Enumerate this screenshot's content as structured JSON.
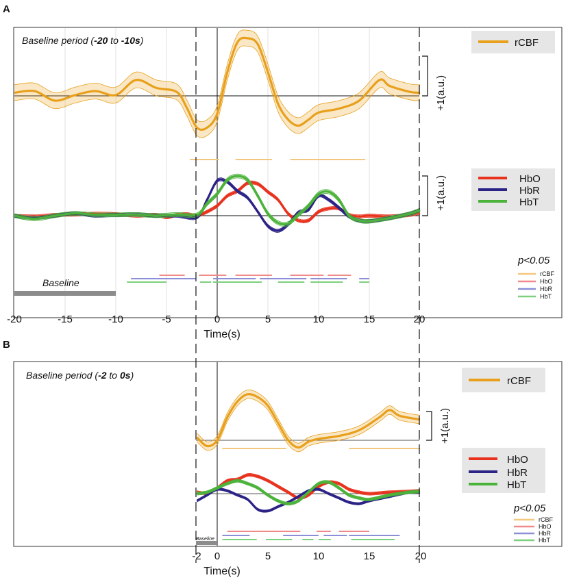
{
  "panels": {
    "A": {
      "label": "A",
      "baseline_text": {
        "pre": "Baseline period (",
        "v1": "-20",
        "mid": " to ",
        "v2": "-10s",
        "post": ")"
      },
      "xlabel": "Time(s)",
      "xticks": [
        "-20",
        "-15",
        "-10",
        "-5",
        "0",
        "5",
        "10",
        "15",
        "20"
      ],
      "baseline_bar_label": "Baseline",
      "scale_label": "+1(a.u.)",
      "legend_rcbf": [
        "rCBF"
      ],
      "legend_hb": [
        "HbO",
        "HbR",
        "HbT"
      ],
      "sig_title": "p<0.05",
      "sig_legend": [
        "rCBF",
        "HbO",
        "HbR",
        "HbT"
      ]
    },
    "B": {
      "label": "B",
      "baseline_text": {
        "pre": "Baseline period (",
        "v1": "-2",
        "mid": " to ",
        "v2": "0s",
        "post": ")"
      },
      "xlabel": "Time(s)",
      "xticks": [
        "-2",
        "0",
        "5",
        "10",
        "15",
        "20"
      ],
      "baseline_bar_label": "Baseline",
      "scale_label": "+1(a.u.)",
      "legend_rcbf": [
        "rCBF"
      ],
      "legend_hb": [
        "HbO",
        "HbR",
        "HbT"
      ],
      "sig_title": "p<0.05",
      "sig_legend": [
        "rCBF",
        "HbO",
        "HbR",
        "HbT"
      ]
    }
  },
  "colors": {
    "rCBF": "#e8a01c",
    "HbO": "#e8321e",
    "HbR": "#2c2387",
    "HbT": "#4bb33a",
    "sig_rCBF": "#f2c77e",
    "sig_HbO": "#f08a8a",
    "sig_HbR": "#8b8fd6",
    "sig_HbT": "#7ccf7c",
    "baseline_bar": "#8c8c8c",
    "legend_bg": "#e6e6e6"
  },
  "chart_data": [
    {
      "panel": "A",
      "type": "line",
      "title": "Baseline period (-20 to -10s)",
      "xlabel": "Time(s)",
      "ylabel": "",
      "xlim": [
        -20,
        20
      ],
      "vlines": [
        -2,
        20
      ],
      "baseline_window": [
        -20,
        -10
      ],
      "series": [
        {
          "name": "rCBF",
          "band": 0.2,
          "points": [
            [
              -20,
              0.08
            ],
            [
              -18,
              0.12
            ],
            [
              -16,
              -0.12
            ],
            [
              -14,
              0.02
            ],
            [
              -12,
              0.12
            ],
            [
              -10,
              0.02
            ],
            [
              -8,
              0.4
            ],
            [
              -6,
              0.2
            ],
            [
              -4,
              0.1
            ],
            [
              -3,
              -0.3
            ],
            [
              -2,
              -0.8
            ],
            [
              -1,
              -0.8
            ],
            [
              0,
              -0.45
            ],
            [
              1,
              0.6
            ],
            [
              2,
              1.35
            ],
            [
              3,
              1.45
            ],
            [
              4,
              1.3
            ],
            [
              5,
              0.6
            ],
            [
              6,
              -0.2
            ],
            [
              7,
              -0.6
            ],
            [
              8,
              -0.75
            ],
            [
              9,
              -0.6
            ],
            [
              10,
              -0.42
            ],
            [
              12,
              -0.32
            ],
            [
              14,
              -0.12
            ],
            [
              16,
              0.4
            ],
            [
              17,
              0.25
            ],
            [
              19,
              0.1
            ],
            [
              20,
              0.08
            ]
          ]
        },
        {
          "name": "HbO",
          "band": 0.04,
          "points": [
            [
              -20,
              0
            ],
            [
              -18,
              -0.02
            ],
            [
              -16,
              0.02
            ],
            [
              -14,
              0.03
            ],
            [
              -12,
              0.05
            ],
            [
              -10,
              0.04
            ],
            [
              -8,
              0
            ],
            [
              -6,
              0.02
            ],
            [
              -5,
              -0.04
            ],
            [
              -4,
              0.02
            ],
            [
              -3,
              0.04
            ],
            [
              -2,
              0
            ],
            [
              -1,
              0.1
            ],
            [
              0,
              0.25
            ],
            [
              1,
              0.5
            ],
            [
              2,
              0.62
            ],
            [
              3,
              0.82
            ],
            [
              4,
              0.8
            ],
            [
              5,
              0.6
            ],
            [
              6,
              0.4
            ],
            [
              7,
              0.05
            ],
            [
              8,
              -0.12
            ],
            [
              9,
              -0.12
            ],
            [
              10,
              0.1
            ],
            [
              11,
              0.18
            ],
            [
              12,
              0.18
            ],
            [
              13,
              0.02
            ],
            [
              14,
              -0.02
            ],
            [
              15,
              0
            ],
            [
              17,
              -0.02
            ],
            [
              19,
              0.02
            ],
            [
              20,
              0.08
            ]
          ]
        },
        {
          "name": "HbR",
          "band": 0.04,
          "points": [
            [
              -20,
              0
            ],
            [
              -18,
              -0.06
            ],
            [
              -16,
              0
            ],
            [
              -14,
              0.05
            ],
            [
              -12,
              0
            ],
            [
              -10,
              0.02
            ],
            [
              -8,
              0.04
            ],
            [
              -6,
              0
            ],
            [
              -4,
              0
            ],
            [
              -2,
              -0.04
            ],
            [
              -1,
              0.4
            ],
            [
              0,
              0.88
            ],
            [
              1,
              0.85
            ],
            [
              2,
              0.62
            ],
            [
              3,
              0.45
            ],
            [
              4,
              0.1
            ],
            [
              5,
              -0.26
            ],
            [
              6,
              -0.38
            ],
            [
              7,
              -0.22
            ],
            [
              8,
              0.08
            ],
            [
              9,
              0.15
            ],
            [
              10,
              0.5
            ],
            [
              11,
              0.4
            ],
            [
              12,
              0.2
            ],
            [
              13,
              -0.02
            ],
            [
              14,
              -0.12
            ],
            [
              15,
              -0.14
            ],
            [
              17,
              -0.06
            ],
            [
              19,
              0.05
            ],
            [
              20,
              0.14
            ]
          ]
        },
        {
          "name": "HbT",
          "band": 0.05,
          "points": [
            [
              -20,
              0
            ],
            [
              -18,
              -0.08
            ],
            [
              -16,
              0
            ],
            [
              -14,
              0.06
            ],
            [
              -12,
              0.02
            ],
            [
              -10,
              0.02
            ],
            [
              -8,
              0.03
            ],
            [
              -6,
              0
            ],
            [
              -4,
              0.03
            ],
            [
              -2,
              0.02
            ],
            [
              -1,
              0.3
            ],
            [
              0,
              0.55
            ],
            [
              1,
              0.9
            ],
            [
              2,
              1.0
            ],
            [
              3,
              0.9
            ],
            [
              4,
              0.5
            ],
            [
              5,
              0.05
            ],
            [
              6,
              -0.18
            ],
            [
              7,
              -0.2
            ],
            [
              8,
              0.02
            ],
            [
              9,
              0.25
            ],
            [
              10,
              0.55
            ],
            [
              11,
              0.6
            ],
            [
              12,
              0.4
            ],
            [
              13,
              0
            ],
            [
              14,
              -0.12
            ],
            [
              15,
              -0.14
            ],
            [
              17,
              -0.06
            ],
            [
              19,
              0.05
            ],
            [
              20,
              0.14
            ]
          ]
        }
      ],
      "significance": {
        "rCBF": [
          [
            -2.7,
            0.2
          ],
          [
            1.8,
            5.4
          ],
          [
            7.2,
            14.6
          ]
        ],
        "HbO": [
          [
            -5.7,
            -3.2
          ],
          [
            -1.8,
            0.9
          ],
          [
            1.8,
            5.4
          ],
          [
            7.2,
            10.5
          ],
          [
            10.9,
            13.2
          ]
        ],
        "HbR": [
          [
            -8.5,
            -2.1
          ],
          [
            -0.4,
            3.8
          ],
          [
            4.2,
            8.8
          ],
          [
            9.2,
            12.8
          ],
          [
            14,
            15
          ]
        ],
        "HbT": [
          [
            -8.9,
            -5
          ],
          [
            -1.7,
            -0.6
          ],
          [
            -0.4,
            4.4
          ],
          [
            6,
            8.6
          ],
          [
            9.2,
            12.4
          ],
          [
            14,
            15
          ]
        ]
      }
    },
    {
      "panel": "B",
      "type": "line",
      "title": "Baseline period (-2 to 0s)",
      "xlabel": "Time(s)",
      "ylabel": "",
      "xlim": [
        -2,
        20
      ],
      "vlines": [
        -2,
        20
      ],
      "baseline_window": [
        -2,
        0
      ],
      "series": [
        {
          "name": "rCBF",
          "band": 0.15,
          "points": [
            [
              -2,
              0.1
            ],
            [
              -1,
              -0.2
            ],
            [
              0,
              0
            ],
            [
              1,
              0.8
            ],
            [
              2,
              1.35
            ],
            [
              3,
              1.6
            ],
            [
              4,
              1.5
            ],
            [
              5,
              1.2
            ],
            [
              6,
              0.6
            ],
            [
              7,
              0
            ],
            [
              8,
              -0.25
            ],
            [
              9,
              -0.05
            ],
            [
              10,
              0.05
            ],
            [
              12,
              0.15
            ],
            [
              14,
              0.35
            ],
            [
              16,
              0.8
            ],
            [
              17,
              1.05
            ],
            [
              18,
              0.85
            ],
            [
              20,
              0.72
            ]
          ]
        },
        {
          "name": "HbO",
          "band": 0.05,
          "points": [
            [
              -2,
              0.05
            ],
            [
              -1,
              0.02
            ],
            [
              0,
              0.2
            ],
            [
              1,
              0.45
            ],
            [
              2,
              0.5
            ],
            [
              3,
              0.65
            ],
            [
              4,
              0.6
            ],
            [
              5,
              0.45
            ],
            [
              6,
              0.25
            ],
            [
              7,
              0.05
            ],
            [
              8,
              -0.15
            ],
            [
              9,
              -0.05
            ],
            [
              10,
              0.25
            ],
            [
              11,
              0.4
            ],
            [
              12,
              0.35
            ],
            [
              13,
              0.15
            ],
            [
              14,
              0.05
            ],
            [
              15,
              0
            ],
            [
              17,
              0.05
            ],
            [
              19,
              0.08
            ],
            [
              20,
              0.1
            ]
          ]
        },
        {
          "name": "HbR",
          "band": 0.04,
          "points": [
            [
              -2,
              -0.25
            ],
            [
              -1,
              -0.05
            ],
            [
              0,
              0.15
            ],
            [
              1,
              0.1
            ],
            [
              2,
              -0.05
            ],
            [
              3,
              -0.2
            ],
            [
              4,
              -0.55
            ],
            [
              5,
              -0.6
            ],
            [
              6,
              -0.45
            ],
            [
              7,
              -0.3
            ],
            [
              8,
              -0.1
            ],
            [
              9,
              0.1
            ],
            [
              10,
              0.15
            ],
            [
              11,
              0
            ],
            [
              12,
              -0.15
            ],
            [
              13,
              -0.3
            ],
            [
              14,
              -0.35
            ],
            [
              15,
              -0.25
            ],
            [
              17,
              -0.1
            ],
            [
              19,
              0.05
            ],
            [
              20,
              0.05
            ]
          ]
        },
        {
          "name": "HbT",
          "band": 0.05,
          "points": [
            [
              -2,
              0
            ],
            [
              -1,
              0.05
            ],
            [
              0,
              0.2
            ],
            [
              1,
              0.35
            ],
            [
              2,
              0.45
            ],
            [
              3,
              0.35
            ],
            [
              4,
              0.2
            ],
            [
              5,
              -0.05
            ],
            [
              6,
              -0.25
            ],
            [
              7,
              -0.35
            ],
            [
              8,
              -0.25
            ],
            [
              9,
              0.05
            ],
            [
              10,
              0.35
            ],
            [
              11,
              0.4
            ],
            [
              12,
              0.2
            ],
            [
              13,
              -0.05
            ],
            [
              14,
              -0.15
            ],
            [
              15,
              -0.2
            ],
            [
              17,
              -0.05
            ],
            [
              19,
              0.05
            ],
            [
              20,
              0.08
            ]
          ]
        }
      ],
      "significance": {
        "rCBF": [
          [
            0.5,
            6.8
          ],
          [
            13,
            20
          ]
        ],
        "HbO": [
          [
            1,
            4
          ],
          [
            4,
            8.2
          ],
          [
            9.8,
            11.2
          ],
          [
            12,
            15
          ]
        ],
        "HbR": [
          [
            0.5,
            3.2
          ],
          [
            6.5,
            10
          ],
          [
            10.5,
            12.8
          ],
          [
            13,
            18
          ]
        ],
        "HbT": [
          [
            0.5,
            3.9
          ],
          [
            4.8,
            7.4
          ],
          [
            8.4,
            9.5
          ],
          [
            10,
            11.2
          ],
          [
            13.2,
            17.5
          ]
        ]
      }
    }
  ]
}
